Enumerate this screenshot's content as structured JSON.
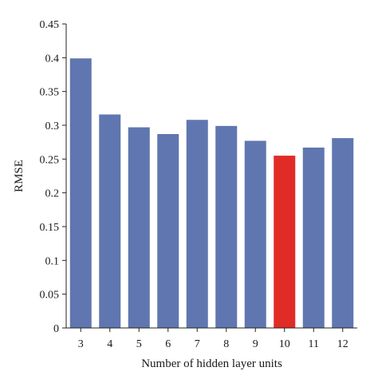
{
  "chart_data": {
    "type": "bar",
    "categories": [
      "3",
      "4",
      "5",
      "6",
      "7",
      "8",
      "9",
      "10",
      "11",
      "12"
    ],
    "values": [
      0.399,
      0.316,
      0.297,
      0.287,
      0.308,
      0.299,
      0.277,
      0.255,
      0.267,
      0.281
    ],
    "bar_colors": [
      "#6076b0",
      "#6076b0",
      "#6076b0",
      "#6076b0",
      "#6076b0",
      "#6076b0",
      "#6076b0",
      "#e02b27",
      "#6076b0",
      "#6076b0"
    ],
    "highlight_color": "#e02b27",
    "bar_color": "#6076b0",
    "xlabel": "Number of hidden layer units",
    "ylabel": "RMSE",
    "ylim": [
      0,
      0.45
    ],
    "yticks": [
      "0",
      "0.05",
      "0.1",
      "0.15",
      "0.2",
      "0.25",
      "0.3",
      "0.35",
      "0.4",
      "0.45"
    ],
    "grid": false,
    "legend": "none"
  }
}
